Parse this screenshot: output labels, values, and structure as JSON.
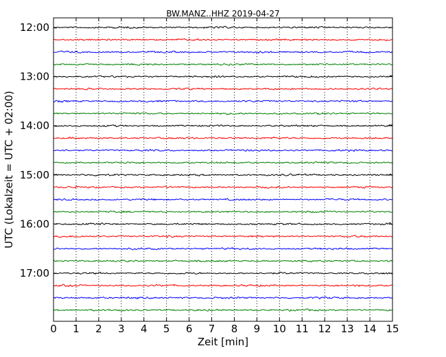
{
  "chart_data": {
    "type": "line",
    "title": "BW.MANZ..HHZ 2019-04-27",
    "xlabel": "Zeit  [min]",
    "ylabel": "UTC (Lokalzeit = UTC + 02:00)",
    "xlim": [
      0,
      15
    ],
    "x_ticks": [
      "0",
      "1",
      "2",
      "3",
      "4",
      "5",
      "6",
      "7",
      "8",
      "9",
      "10",
      "11",
      "12",
      "13",
      "14",
      "15"
    ],
    "y_ticks": [
      "12:00",
      "13:00",
      "14:00",
      "15:00",
      "16:00",
      "17:00"
    ],
    "grid": "vertical dotted",
    "trace_interval_minutes": 15,
    "series": [
      {
        "start": "12:00",
        "color": "#000000"
      },
      {
        "start": "12:15",
        "color": "#ff0000"
      },
      {
        "start": "12:30",
        "color": "#0000ff"
      },
      {
        "start": "12:45",
        "color": "#008000"
      },
      {
        "start": "13:00",
        "color": "#000000"
      },
      {
        "start": "13:15",
        "color": "#ff0000"
      },
      {
        "start": "13:30",
        "color": "#0000ff"
      },
      {
        "start": "13:45",
        "color": "#008000"
      },
      {
        "start": "14:00",
        "color": "#000000"
      },
      {
        "start": "14:15",
        "color": "#ff0000"
      },
      {
        "start": "14:30",
        "color": "#0000ff"
      },
      {
        "start": "14:45",
        "color": "#008000"
      },
      {
        "start": "15:00",
        "color": "#000000"
      },
      {
        "start": "15:15",
        "color": "#ff0000"
      },
      {
        "start": "15:30",
        "color": "#0000ff"
      },
      {
        "start": "15:45",
        "color": "#008000"
      },
      {
        "start": "16:00",
        "color": "#000000"
      },
      {
        "start": "16:15",
        "color": "#ff0000"
      },
      {
        "start": "16:30",
        "color": "#0000ff"
      },
      {
        "start": "16:45",
        "color": "#008000"
      },
      {
        "start": "17:00",
        "color": "#000000"
      },
      {
        "start": "17:15",
        "color": "#ff0000"
      },
      {
        "start": "17:30",
        "color": "#0000ff"
      },
      {
        "start": "17:45",
        "color": "#008000"
      }
    ]
  }
}
